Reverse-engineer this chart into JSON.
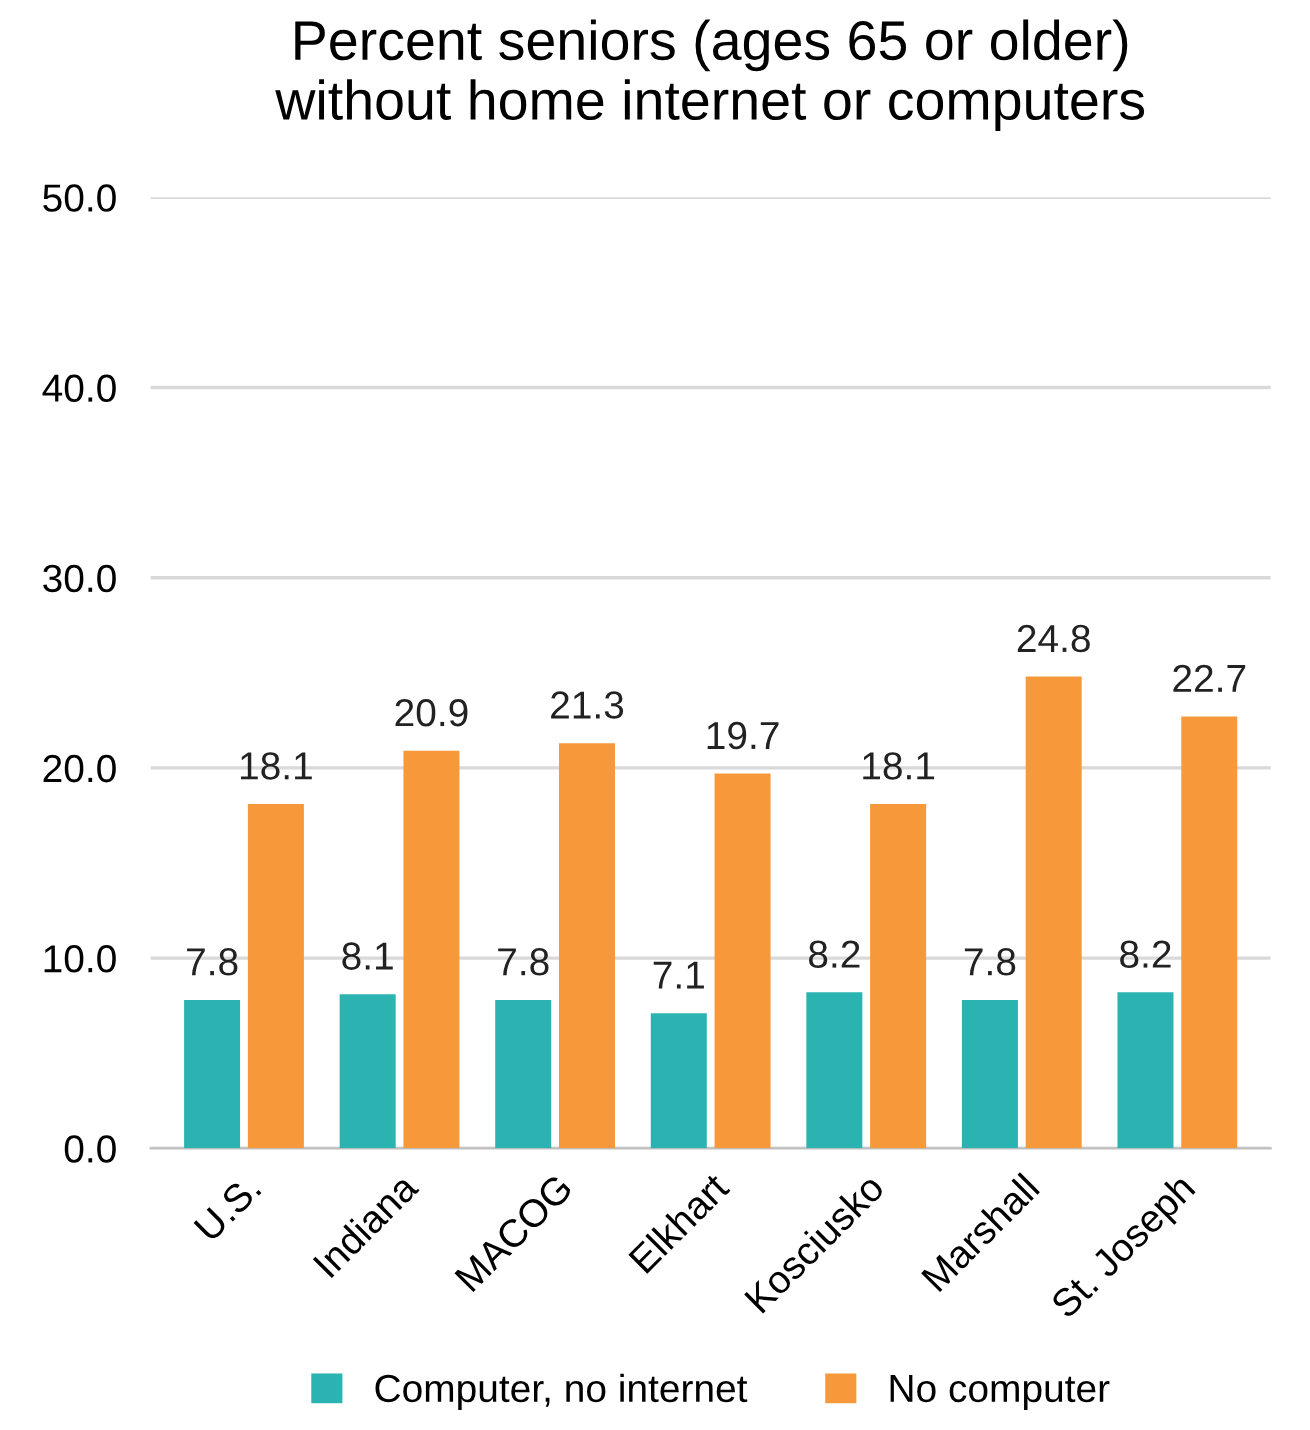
{
  "chart_data": {
    "type": "bar",
    "title": "Percent seniors (ages 65 or older)\nwithout home internet or computers",
    "categories": [
      "U.S.",
      "Indiana",
      "MACOG",
      "Elkhart",
      "Kosciusko",
      "Marshall",
      "St. Joseph"
    ],
    "series": [
      {
        "name": "Computer, no internet",
        "color": "#2bb3b1",
        "values": [
          7.8,
          8.1,
          7.8,
          7.1,
          8.2,
          7.8,
          8.2
        ]
      },
      {
        "name": "No computer",
        "color": "#f7993a",
        "values": [
          18.1,
          20.9,
          21.3,
          19.7,
          18.1,
          24.8,
          22.7
        ]
      }
    ],
    "ylim": [
      0,
      50
    ],
    "yticks": [
      {
        "value": 0,
        "label": "0.0"
      },
      {
        "value": 10,
        "label": "10.0"
      },
      {
        "value": 20,
        "label": "20.0"
      },
      {
        "value": 30,
        "label": "30.0"
      },
      {
        "value": 40,
        "label": "40.0"
      },
      {
        "value": 50,
        "label": "50.0"
      }
    ],
    "grid": "y",
    "legend": "bottom",
    "data_labels": true
  }
}
